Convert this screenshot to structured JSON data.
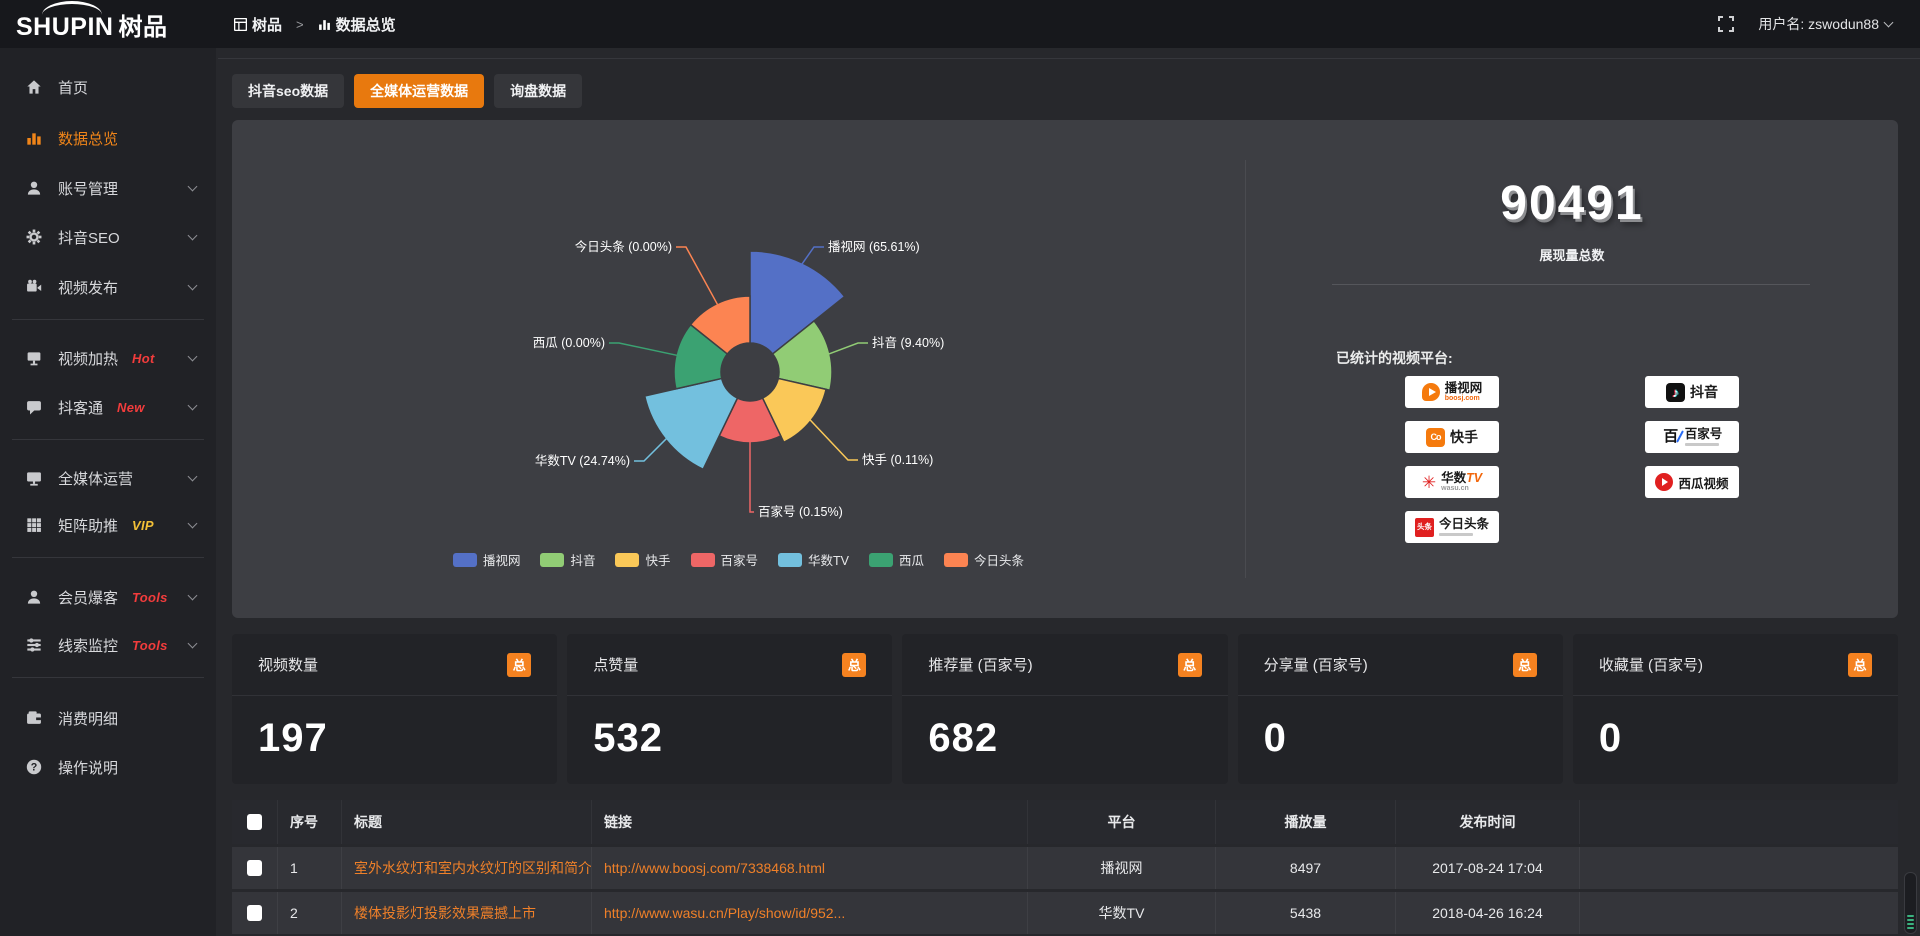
{
  "topbar": {
    "logo_text": "SHUPIN",
    "logo_suffix": "树品",
    "breadcrumb_home": "树品",
    "breadcrumb_sep": ">",
    "breadcrumb_page": "数据总览",
    "username": "用户名: zswodun88"
  },
  "sidebar": {
    "items": [
      {
        "label": "首页",
        "icon": "home"
      },
      {
        "label": "数据总览",
        "icon": "chart",
        "active": true
      },
      {
        "label": "账号管理",
        "icon": "user",
        "chevron": true
      },
      {
        "label": "抖音SEO",
        "icon": "gear",
        "chevron": true
      },
      {
        "label": "视频发布",
        "icon": "video",
        "chevron": true,
        "divider_after": true
      },
      {
        "label": "视频加热",
        "icon": "screen",
        "badge": "Hot",
        "badge_color": "#f23c3c",
        "chevron": true
      },
      {
        "label": "抖客通",
        "icon": "chat",
        "badge": "New",
        "badge_color": "#f23c3c",
        "chevron": true,
        "divider_after": true
      },
      {
        "label": "全媒体运营",
        "icon": "monitor",
        "chevron": true
      },
      {
        "label": "矩阵助推",
        "icon": "grid",
        "badge": "VIP",
        "badge_color": "#f2c037",
        "chevron": true,
        "divider_after": true
      },
      {
        "label": "会员爆客",
        "icon": "user2",
        "badge": "Tools",
        "badge_color": "#f23c3c",
        "chevron": true
      },
      {
        "label": "线索监控",
        "icon": "sliders",
        "badge": "Tools",
        "badge_color": "#f23c3c",
        "chevron": true,
        "divider_after": true
      },
      {
        "label": "消费明细",
        "icon": "wallet"
      },
      {
        "label": "操作说明",
        "icon": "help"
      }
    ]
  },
  "tabs": [
    {
      "label": "抖音seo数据",
      "active": false
    },
    {
      "label": "全媒体运营数据",
      "active": true
    },
    {
      "label": "询盘数据",
      "active": false
    }
  ],
  "chart_data": {
    "type": "pie",
    "rose": true,
    "items": [
      {
        "name": "播视网",
        "value_pct": 65.61,
        "color": "#5470c6",
        "label": "播视网 (65.61%)"
      },
      {
        "name": "抖音",
        "value_pct": 9.4,
        "color": "#91cc75",
        "label": "抖音 (9.40%)"
      },
      {
        "name": "快手",
        "value_pct": 0.11,
        "color": "#fac858",
        "label": "快手 (0.11%)"
      },
      {
        "name": "百家号",
        "value_pct": 0.15,
        "color": "#ee6666",
        "label": "百家号 (0.15%)"
      },
      {
        "name": "华数TV",
        "value_pct": 24.74,
        "color": "#73c0de",
        "label": "华数TV (24.74%)"
      },
      {
        "name": "西瓜",
        "value_pct": 0.0,
        "color": "#3ba272",
        "label": "西瓜 (0.00%)"
      },
      {
        "name": "今日头条",
        "value_pct": 0.0,
        "color": "#fc8452",
        "label": "今日头条 (0.00%)"
      }
    ],
    "legend": [
      "播视网",
      "抖音",
      "快手",
      "百家号",
      "华数TV",
      "西瓜",
      "今日头条"
    ],
    "legend_position": "bottom",
    "equal_angles": true,
    "display_radii": [
      121,
      82,
      78,
      71,
      108,
      76,
      76
    ],
    "inner_radius": 29
  },
  "summary": {
    "total": "90491",
    "total_label": "展现量总数",
    "platforms_label": "已统计的视频平台:",
    "platforms_left": [
      {
        "name": "播视网",
        "sub": "boosj.com",
        "icon": "boosj"
      },
      {
        "name": "快手",
        "icon": "kuaishou"
      },
      {
        "name": "华数",
        "name2": "TV",
        "sub": "wasu.cn",
        "icon": "wasu"
      },
      {
        "name": "今日头条",
        "icon": "toutiao",
        "icon_text": "头条",
        "tagline": true
      }
    ],
    "platforms_right": [
      {
        "name": "抖音",
        "icon": "douyin",
        "icon_text": "♪"
      },
      {
        "name": "百家号",
        "icon": "baijia",
        "icon_text": "百",
        "tagline": true
      },
      {
        "name": "西瓜视频",
        "icon": "xigua"
      }
    ]
  },
  "stat_cards": [
    {
      "title": "视频数量",
      "badge": "总",
      "value": "197"
    },
    {
      "title": "点赞量",
      "badge": "总",
      "value": "532"
    },
    {
      "title": "推荐量 (百家号)",
      "badge": "总",
      "value": "682"
    },
    {
      "title": "分享量 (百家号)",
      "badge": "总",
      "value": "0"
    },
    {
      "title": "收藏量 (百家号)",
      "badge": "总",
      "value": "0"
    }
  ],
  "table": {
    "headers": [
      "序号",
      "标题",
      "链接",
      "平台",
      "播放量",
      "发布时间"
    ],
    "rows": [
      {
        "num": "1",
        "title": "室外水纹灯和室内水纹灯的区别和简介",
        "link": "http://www.boosj.com/7338468.html",
        "platform": "播视网",
        "plays": "8497",
        "time": "2017-08-24 17:04"
      },
      {
        "num": "2",
        "title": "楼体投影灯投影效果震撼上市",
        "link": "http://www.wasu.cn/Play/show/id/952...",
        "platform": "华数TV",
        "plays": "5438",
        "time": "2018-04-26 16:24"
      }
    ]
  },
  "colors": {
    "accent": "#f08519",
    "tab_active": "#e8790e",
    "link": "#ef8029",
    "panel_bg": "#3d3e43"
  }
}
